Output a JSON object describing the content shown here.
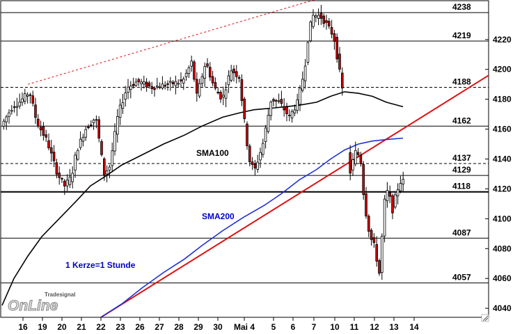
{
  "chart_data": {
    "type": "candlestick",
    "ylim": [
      4034,
      4246
    ],
    "yticks": [
      4040,
      4060,
      4080,
      4100,
      4120,
      4140,
      4160,
      4180,
      4200,
      4220
    ],
    "xtick_labels": [
      "16",
      "19",
      "20",
      "21",
      "22",
      "23",
      "26",
      "27",
      "28",
      "29",
      "30",
      "Mai 4",
      "5",
      "6",
      "7",
      "10",
      "11",
      "12",
      "13",
      "14"
    ],
    "grid": false,
    "levels": [
      {
        "label": "4238",
        "value": 4238,
        "style": "solid"
      },
      {
        "label": "4219",
        "value": 4219,
        "style": "solid"
      },
      {
        "label": "4188",
        "value": 4188,
        "style": "dashed"
      },
      {
        "label": "4162",
        "value": 4162,
        "style": "solid"
      },
      {
        "label": "4137",
        "value": 4137,
        "style": "dashed"
      },
      {
        "label": "4129",
        "value": 4129,
        "style": "solid"
      },
      {
        "label": "4118",
        "value": 4118,
        "style": "solid-bold"
      },
      {
        "label": "4087",
        "value": 4087,
        "style": "solid"
      },
      {
        "label": "4057",
        "value": 4057,
        "style": "solid"
      }
    ],
    "annotations": [
      {
        "text": "SMA100",
        "color": "#000000"
      },
      {
        "text": "SMA200",
        "color": "#0000cc"
      },
      {
        "text": "1 Kerze=1 Stunde",
        "color": "#0000cc"
      }
    ],
    "lines": [
      {
        "name": "SMA100",
        "color": "#000000"
      },
      {
        "name": "SMA200",
        "color": "#1e2fd6"
      },
      {
        "name": "trend-up",
        "color": "#e01010"
      },
      {
        "name": "trend-resistance",
        "color": "#e01010",
        "dashed": true
      }
    ],
    "logo": {
      "top": "Tradesignal",
      "bottom": "OnLine"
    }
  }
}
